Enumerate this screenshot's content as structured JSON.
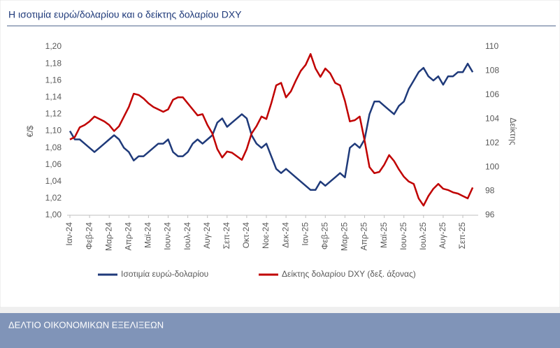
{
  "chart_data": {
    "type": "line",
    "title": "Η ισοτιμία ευρώ/δολαρίου και ο δείκτης δολαρίου DXY",
    "ylabel": "€/$",
    "y2label": "Δείκτης",
    "categories": [
      "Ιαν-24",
      null,
      null,
      null,
      "Φεβ-24",
      null,
      null,
      null,
      "Μαρ-24",
      null,
      null,
      null,
      "Απρ-24",
      null,
      null,
      null,
      "Μαϊ-24",
      null,
      null,
      null,
      "Ιουν-24",
      null,
      null,
      null,
      "Ιουλ-24",
      null,
      null,
      null,
      "Αυγ-24",
      null,
      null,
      null,
      "Σεπ-24",
      null,
      null,
      null,
      "Οκτ-24",
      null,
      null,
      null,
      "Νοε-24",
      null,
      null,
      null,
      "Δεκ-24",
      null,
      null,
      null,
      "Ιαν-25",
      null,
      null,
      null,
      "Φεβ-25",
      null,
      null,
      null,
      "Μαρ-25",
      null,
      null,
      null,
      "Απρ-25",
      null,
      null,
      null,
      "Μαϊ-25",
      null,
      null,
      null,
      "Ιουν-25",
      null,
      null,
      null,
      "Ιουλ-25",
      null,
      null,
      null,
      "Αυγ-25",
      null,
      null,
      null,
      "Σεπ-25",
      null,
      null
    ],
    "series": [
      {
        "name": "Ισοτιμία ευρώ-δολαρίου",
        "color": "#1f3a7a",
        "values": [
          1.1,
          1.09,
          1.09,
          1.085,
          1.08,
          1.075,
          1.08,
          1.085,
          1.09,
          1.095,
          1.09,
          1.08,
          1.075,
          1.065,
          1.07,
          1.07,
          1.075,
          1.08,
          1.085,
          1.085,
          1.09,
          1.075,
          1.07,
          1.07,
          1.075,
          1.085,
          1.09,
          1.085,
          1.09,
          1.095,
          1.11,
          1.115,
          1.105,
          1.11,
          1.115,
          1.12,
          1.115,
          1.095,
          1.085,
          1.08,
          1.085,
          1.07,
          1.055,
          1.05,
          1.055,
          1.05,
          1.045,
          1.04,
          1.035,
          1.03,
          1.03,
          1.04,
          1.035,
          1.04,
          1.045,
          1.05,
          1.045,
          1.08,
          1.085,
          1.08,
          1.09,
          1.12,
          1.135,
          1.135,
          1.13,
          1.125,
          1.12,
          1.13,
          1.135,
          1.15,
          1.16,
          1.17,
          1.175,
          1.165,
          1.16,
          1.165,
          1.155,
          1.165,
          1.165,
          1.17,
          1.17,
          1.18,
          1.17
        ]
      },
      {
        "name": "Δείκτης δολαρίου DXY (δεξ. άξονας)",
        "color": "#c00000",
        "axis": "y2",
        "values": [
          102.3,
          102.5,
          103.3,
          103.5,
          103.8,
          104.2,
          104.0,
          103.8,
          103.5,
          103.0,
          103.4,
          104.2,
          105.0,
          106.1,
          106.0,
          105.7,
          105.3,
          105.0,
          104.8,
          104.6,
          104.8,
          105.6,
          105.8,
          105.8,
          105.3,
          104.8,
          104.3,
          104.4,
          103.5,
          102.8,
          101.5,
          100.8,
          101.3,
          101.2,
          100.9,
          100.6,
          101.5,
          102.8,
          103.4,
          104.2,
          104.0,
          105.3,
          106.8,
          107.0,
          105.8,
          106.3,
          107.2,
          108.0,
          108.5,
          109.4,
          108.2,
          107.5,
          108.2,
          107.8,
          107.0,
          106.8,
          105.5,
          103.8,
          103.9,
          104.2,
          102.2,
          100.0,
          99.5,
          99.6,
          100.2,
          101.0,
          100.5,
          99.8,
          99.2,
          98.8,
          98.6,
          97.4,
          96.8,
          97.6,
          98.2,
          98.6,
          98.2,
          98.1,
          97.9,
          97.8,
          97.6,
          97.4,
          98.3
        ]
      }
    ],
    "ylim": [
      1.0,
      1.2
    ],
    "yticks": [
      {
        "value": 1.0,
        "label": "1,00"
      },
      {
        "value": 1.02,
        "label": "1,02"
      },
      {
        "value": 1.04,
        "label": "1,04"
      },
      {
        "value": 1.06,
        "label": "1,06"
      },
      {
        "value": 1.08,
        "label": "1,08"
      },
      {
        "value": 1.1,
        "label": "1,10"
      },
      {
        "value": 1.12,
        "label": "1,12"
      },
      {
        "value": 1.14,
        "label": "1,14"
      },
      {
        "value": 1.16,
        "label": "1,16"
      },
      {
        "value": 1.18,
        "label": "1,18"
      },
      {
        "value": 1.2,
        "label": "1,20"
      }
    ],
    "y2lim": [
      96,
      110
    ],
    "y2ticks": [
      96,
      98,
      100,
      102,
      104,
      106,
      108,
      110
    ],
    "legend": "bottom",
    "grid": false
  },
  "footer": {
    "text": "ΔΕΛΤΙΟ ΟΙΚΟΝΟΜΙΚΩΝ ΕΞΕΛΙΞΕΩΝ"
  }
}
